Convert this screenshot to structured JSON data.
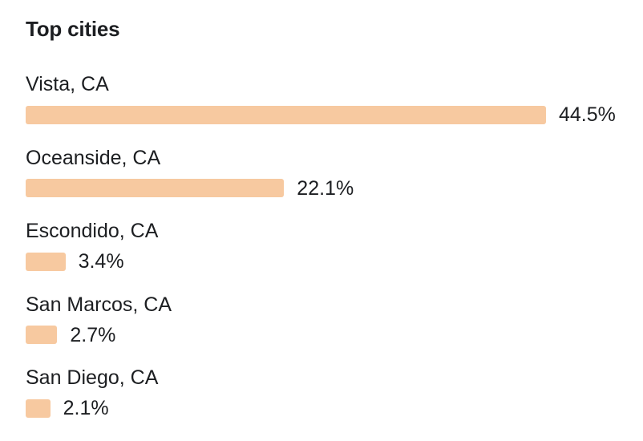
{
  "chart_data": {
    "type": "bar",
    "orientation": "horizontal",
    "title": "Top cities",
    "categories": [
      "Vista, CA",
      "Oceanside, CA",
      "Escondido, CA",
      "San Marcos, CA",
      "San Diego, CA"
    ],
    "values": [
      44.5,
      22.1,
      3.4,
      2.7,
      2.1
    ],
    "value_labels": [
      "44.5%",
      "22.1%",
      "3.4%",
      "2.7%",
      "2.1%"
    ],
    "unit": "%",
    "xlim": [
      0,
      44.5
    ],
    "grid": false,
    "bar_color": "#f7c9a0"
  }
}
